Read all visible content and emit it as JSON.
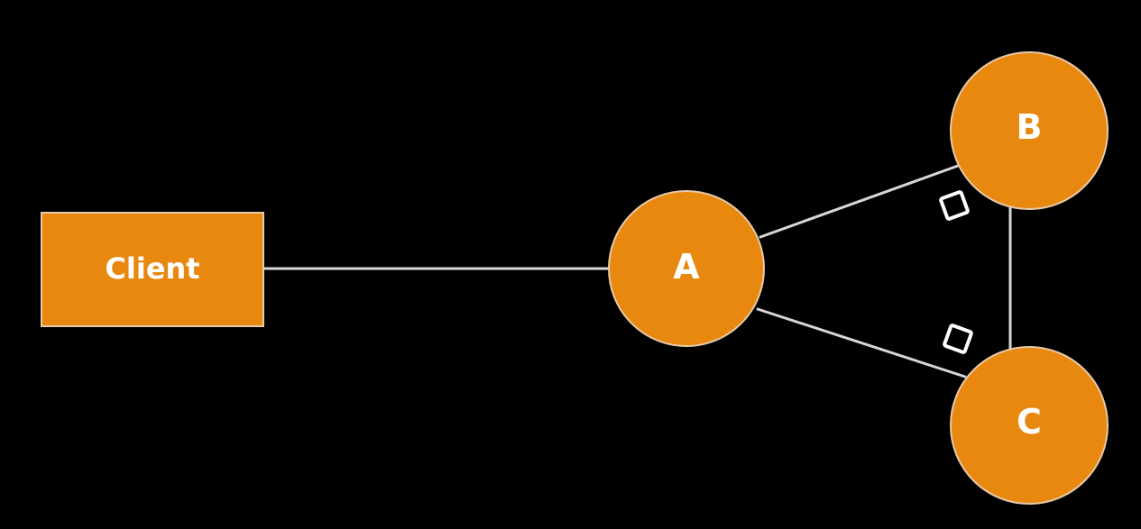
{
  "colors": {
    "background": "#000000",
    "node_fill": "#e8880f",
    "edge": "#d6d6d6",
    "label": "#ffffff",
    "marker": "#ffffff"
  },
  "nodes": {
    "client": {
      "label": "Client",
      "shape": "rectangle"
    },
    "a": {
      "label": "A",
      "shape": "circle"
    },
    "b": {
      "label": "B",
      "shape": "circle"
    },
    "c": {
      "label": "C",
      "shape": "circle"
    }
  },
  "edges": [
    {
      "from": "client",
      "to": "a"
    },
    {
      "from": "a",
      "to": "b"
    },
    {
      "from": "a",
      "to": "c"
    },
    {
      "from": "b",
      "to": "c"
    }
  ],
  "markers": [
    {
      "on_edge": "a-b",
      "icon": "square-outline-icon"
    },
    {
      "on_edge": "a-c",
      "icon": "square-outline-icon"
    }
  ]
}
